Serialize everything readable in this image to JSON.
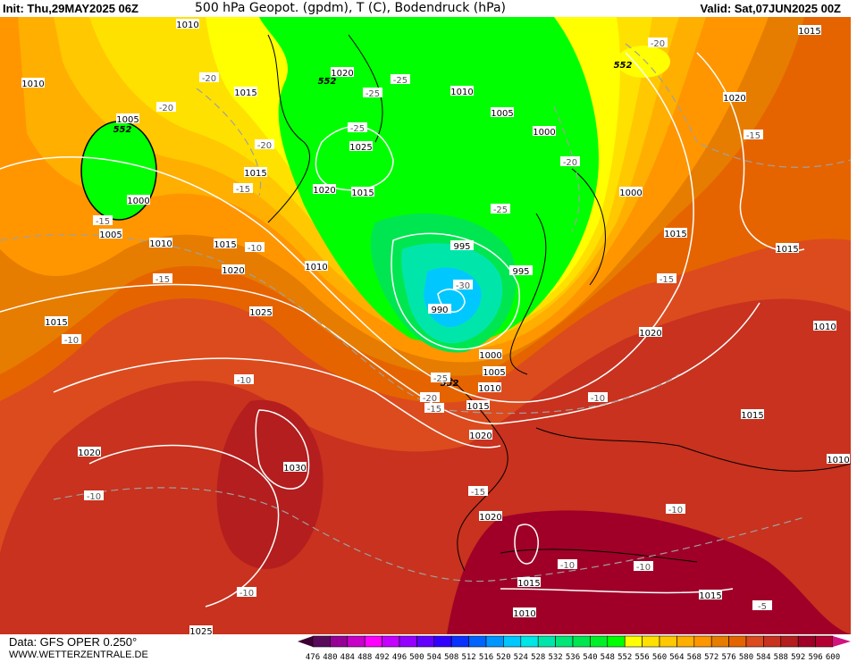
{
  "header": {
    "init": "Init: Thu,29MAY2025 06Z",
    "title": "500 hPa Geopot. (gpdm), T (C), Bodendruck (hPa)",
    "valid": "Valid: Sat,07JUN2025 00Z"
  },
  "footer": {
    "data_source": "Data: GFS OPER 0.250°",
    "website": "WWW.WETTERZENTRALE.DE"
  },
  "legend": {
    "labels": [
      "476",
      "480",
      "484",
      "488",
      "492",
      "496",
      "500",
      "504",
      "508",
      "512",
      "516",
      "520",
      "524",
      "528",
      "532",
      "536",
      "540",
      "548",
      "552",
      "556",
      "560",
      "564",
      "568",
      "572",
      "576",
      "580",
      "584",
      "588",
      "592",
      "596",
      "600"
    ],
    "colors": [
      "#5a0a5a",
      "#960096",
      "#c800c8",
      "#ff00ff",
      "#c400ff",
      "#9600ff",
      "#6400ff",
      "#3200ff",
      "#0a32ff",
      "#0064ff",
      "#0096ff",
      "#00c8ff",
      "#00e6e6",
      "#00e6aa",
      "#00e678",
      "#00e650",
      "#00f028",
      "#00ff00",
      "#ffff00",
      "#ffe100",
      "#ffc800",
      "#ffaf00",
      "#ff9600",
      "#e67d00",
      "#e66400",
      "#dc4b1e",
      "#c8321e",
      "#b41e1e",
      "#a00028",
      "#b40032"
    ],
    "under_color": "#3c0032",
    "over_color": "#d2147d"
  },
  "isobar_labels": [
    "1010",
    "1010",
    "1015",
    "1020",
    "1005",
    "1000",
    "1005",
    "1010",
    "1015",
    "1020",
    "1015",
    "1025",
    "1010",
    "1005",
    "1000",
    "1000",
    "1015",
    "1015",
    "1020",
    "1010",
    "995",
    "995",
    "990",
    "1015",
    "1025",
    "1000",
    "1005",
    "1010",
    "1015",
    "1020",
    "1020",
    "1015",
    "1030",
    "1020",
    "1020",
    "1015",
    "1010",
    "1015",
    "1010",
    "1025",
    "1015",
    "1020",
    "1015",
    "1010"
  ],
  "geopot_labels": [
    "552",
    "552",
    "552",
    "552"
  ],
  "temp_labels": [
    "-20",
    "-20",
    "-20",
    "-20",
    "-20",
    "-25",
    "-25",
    "-25",
    "-25",
    "-25",
    "-15",
    "-15",
    "-15",
    "-15",
    "-15",
    "-15",
    "-15",
    "-10",
    "-10",
    "-10",
    "-10",
    "-10",
    "-10",
    "-10",
    "-10",
    "-10",
    "-30",
    "-5",
    "-20"
  ]
}
